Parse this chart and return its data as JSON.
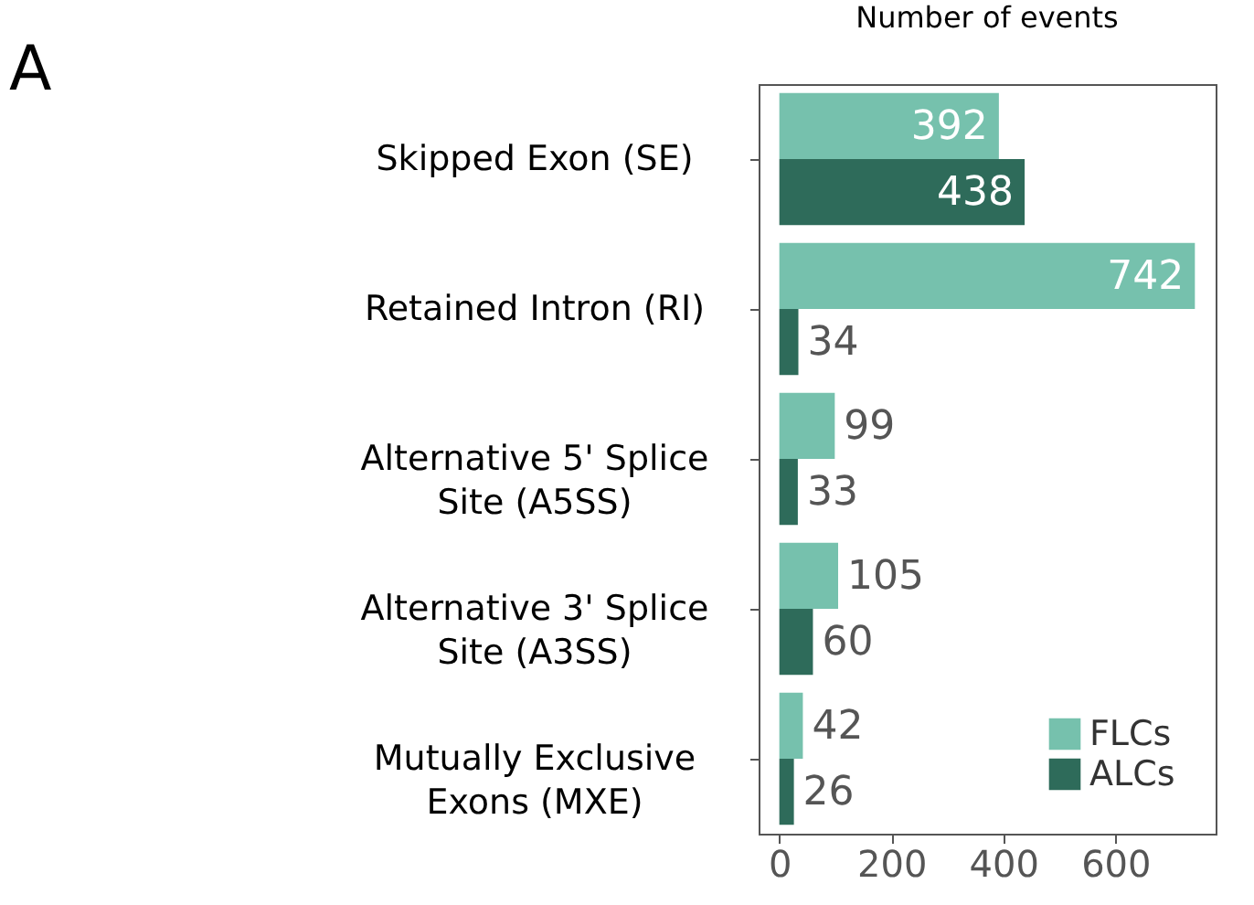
{
  "chart_data": {
    "type": "bar",
    "orientation": "horizontal",
    "title": "Number of events",
    "annotations": [
      "A"
    ],
    "categories": [
      "Skipped Exon (SE)",
      "Retained Intron (RI)",
      "Alternative 5' Splice Site (A5SS)",
      "Alternative 3' Splice Site (A3SS)",
      "Mutually Exclusive Exons (MXE)"
    ],
    "series": [
      {
        "name": "FLCs",
        "color": "#76c1ad",
        "values": [
          392,
          742,
          99,
          105,
          42
        ]
      },
      {
        "name": "ALCs",
        "color": "#2e6b5a",
        "values": [
          438,
          34,
          33,
          60,
          26
        ]
      }
    ],
    "xlim": [
      -37,
      779
    ],
    "xticks": [
      0,
      200,
      400,
      600
    ],
    "data_labels": true,
    "grid": false,
    "legend": "bottom right"
  }
}
